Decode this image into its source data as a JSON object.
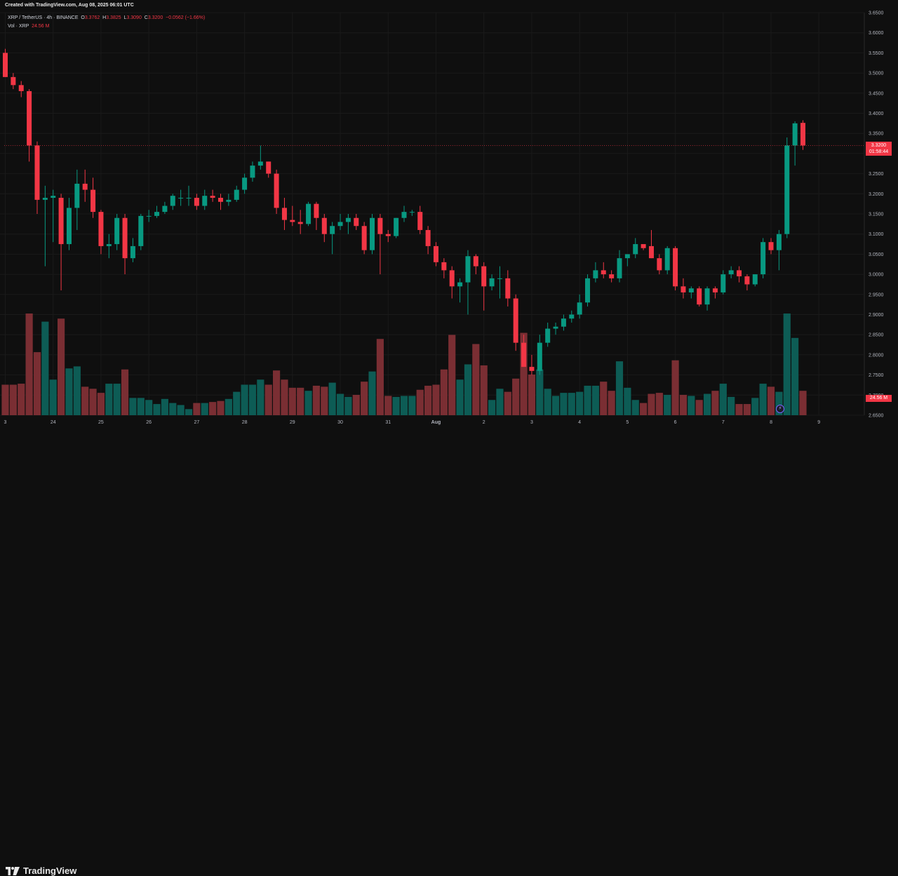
{
  "header": {
    "created": "Created with TradingView.com, Aug 08, 2025 06:01 UTC",
    "symbol": "XRP / TetherUS · 4h · BINANCE",
    "o_label": "O",
    "o_value": "3.3762",
    "h_label": "H",
    "h_value": "3.3825",
    "l_label": "L",
    "l_value": "3.3090",
    "c_label": "C",
    "c_value": "3.3200",
    "change": "−0.0562 (−1.66%)",
    "vol_label": "Vol · XRP",
    "vol_value": "24.56 M"
  },
  "price_tag": {
    "price": "3.3200",
    "countdown": "01:58:44"
  },
  "volume_tag": "24.56 M",
  "logo_text": "TradingView",
  "colors": {
    "up": "#089981",
    "down": "#f23645",
    "up_vol": "#0d5c55",
    "down_vol": "#7a2e33",
    "background": "#0f0f0f",
    "grid": "#1a1a1a"
  },
  "chart_data": {
    "type": "candlestick",
    "symbol": "XRP / TetherUS",
    "interval": "4h",
    "exchange": "BINANCE",
    "y_axis_ticks": [
      "3.6500",
      "3.6000",
      "3.5500",
      "3.5000",
      "3.4500",
      "3.4000",
      "3.3500",
      "3.3000",
      "3.2500",
      "3.2000",
      "3.1500",
      "3.1000",
      "3.0500",
      "3.0000",
      "2.9500",
      "2.9000",
      "2.8500",
      "2.8000",
      "2.7500",
      "2.7000",
      "2.6500"
    ],
    "y_axis_range": [
      2.65,
      3.65
    ],
    "x_axis_ticks": [
      {
        "label": "3",
        "index": 0
      },
      {
        "label": "24",
        "index": 6
      },
      {
        "label": "25",
        "index": 12
      },
      {
        "label": "26",
        "index": 18
      },
      {
        "label": "27",
        "index": 24
      },
      {
        "label": "28",
        "index": 30
      },
      {
        "label": "29",
        "index": 36
      },
      {
        "label": "30",
        "index": 42
      },
      {
        "label": "31",
        "index": 48
      },
      {
        "label": "Aug",
        "index": 54
      },
      {
        "label": "2",
        "index": 60
      },
      {
        "label": "3",
        "index": 66
      },
      {
        "label": "4",
        "index": 72
      },
      {
        "label": "5",
        "index": 78
      },
      {
        "label": "6",
        "index": 84
      },
      {
        "label": "7",
        "index": 90
      },
      {
        "label": "8",
        "index": 96
      },
      {
        "label": "9",
        "index": 102
      }
    ],
    "last_price": 3.32,
    "candles": [
      {
        "o": 3.55,
        "h": 3.56,
        "l": 3.49,
        "c": 3.49,
        "v": 0.3
      },
      {
        "o": 3.49,
        "h": 3.5,
        "l": 3.46,
        "c": 3.47,
        "v": 0.3
      },
      {
        "o": 3.47,
        "h": 3.48,
        "l": 3.44,
        "c": 3.455,
        "v": 0.31
      },
      {
        "o": 3.455,
        "h": 3.46,
        "l": 3.28,
        "c": 3.32,
        "v": 1.0
      },
      {
        "o": 3.32,
        "h": 3.33,
        "l": 3.15,
        "c": 3.185,
        "v": 0.62
      },
      {
        "o": 3.185,
        "h": 3.22,
        "l": 3.02,
        "c": 3.19,
        "v": 0.92
      },
      {
        "o": 3.19,
        "h": 3.21,
        "l": 3.08,
        "c": 3.195,
        "v": 0.35
      },
      {
        "o": 3.19,
        "h": 3.2,
        "l": 2.96,
        "c": 3.075,
        "v": 0.95
      },
      {
        "o": 3.075,
        "h": 3.19,
        "l": 3.06,
        "c": 3.165,
        "v": 0.46
      },
      {
        "o": 3.165,
        "h": 3.26,
        "l": 3.11,
        "c": 3.225,
        "v": 0.48
      },
      {
        "o": 3.225,
        "h": 3.26,
        "l": 3.18,
        "c": 3.21,
        "v": 0.28
      },
      {
        "o": 3.21,
        "h": 3.24,
        "l": 3.14,
        "c": 3.155,
        "v": 0.26
      },
      {
        "o": 3.155,
        "h": 3.16,
        "l": 3.05,
        "c": 3.07,
        "v": 0.22
      },
      {
        "o": 3.07,
        "h": 3.1,
        "l": 3.04,
        "c": 3.075,
        "v": 0.31
      },
      {
        "o": 3.075,
        "h": 3.15,
        "l": 3.06,
        "c": 3.14,
        "v": 0.31
      },
      {
        "o": 3.14,
        "h": 3.15,
        "l": 3.0,
        "c": 3.04,
        "v": 0.45
      },
      {
        "o": 3.04,
        "h": 3.09,
        "l": 3.03,
        "c": 3.07,
        "v": 0.17
      },
      {
        "o": 3.07,
        "h": 3.15,
        "l": 3.06,
        "c": 3.145,
        "v": 0.17
      },
      {
        "o": 3.145,
        "h": 3.16,
        "l": 3.13,
        "c": 3.145,
        "v": 0.15
      },
      {
        "o": 3.145,
        "h": 3.17,
        "l": 3.14,
        "c": 3.155,
        "v": 0.11
      },
      {
        "o": 3.155,
        "h": 3.18,
        "l": 3.15,
        "c": 3.17,
        "v": 0.16
      },
      {
        "o": 3.17,
        "h": 3.2,
        "l": 3.16,
        "c": 3.195,
        "v": 0.12
      },
      {
        "o": 3.19,
        "h": 3.21,
        "l": 3.17,
        "c": 3.19,
        "v": 0.1
      },
      {
        "o": 3.19,
        "h": 3.22,
        "l": 3.17,
        "c": 3.19,
        "v": 0.06
      },
      {
        "o": 3.19,
        "h": 3.2,
        "l": 3.16,
        "c": 3.17,
        "v": 0.12
      },
      {
        "o": 3.17,
        "h": 3.21,
        "l": 3.16,
        "c": 3.195,
        "v": 0.12
      },
      {
        "o": 3.195,
        "h": 3.21,
        "l": 3.18,
        "c": 3.19,
        "v": 0.13
      },
      {
        "o": 3.19,
        "h": 3.2,
        "l": 3.16,
        "c": 3.18,
        "v": 0.14
      },
      {
        "o": 3.18,
        "h": 3.2,
        "l": 3.17,
        "c": 3.185,
        "v": 0.16
      },
      {
        "o": 3.185,
        "h": 3.22,
        "l": 3.18,
        "c": 3.21,
        "v": 0.23
      },
      {
        "o": 3.21,
        "h": 3.25,
        "l": 3.2,
        "c": 3.24,
        "v": 0.3
      },
      {
        "o": 3.24,
        "h": 3.28,
        "l": 3.23,
        "c": 3.27,
        "v": 0.3
      },
      {
        "o": 3.27,
        "h": 3.32,
        "l": 3.26,
        "c": 3.28,
        "v": 0.35
      },
      {
        "o": 3.28,
        "h": 3.28,
        "l": 3.24,
        "c": 3.25,
        "v": 0.3
      },
      {
        "o": 3.25,
        "h": 3.26,
        "l": 3.15,
        "c": 3.165,
        "v": 0.44
      },
      {
        "o": 3.165,
        "h": 3.19,
        "l": 3.11,
        "c": 3.135,
        "v": 0.35
      },
      {
        "o": 3.135,
        "h": 3.17,
        "l": 3.12,
        "c": 3.13,
        "v": 0.27
      },
      {
        "o": 3.13,
        "h": 3.16,
        "l": 3.1,
        "c": 3.125,
        "v": 0.27
      },
      {
        "o": 3.125,
        "h": 3.18,
        "l": 3.12,
        "c": 3.175,
        "v": 0.24
      },
      {
        "o": 3.175,
        "h": 3.18,
        "l": 3.11,
        "c": 3.14,
        "v": 0.29
      },
      {
        "o": 3.14,
        "h": 3.15,
        "l": 3.08,
        "c": 3.1,
        "v": 0.28
      },
      {
        "o": 3.1,
        "h": 3.13,
        "l": 3.05,
        "c": 3.12,
        "v": 0.32
      },
      {
        "o": 3.12,
        "h": 3.15,
        "l": 3.11,
        "c": 3.13,
        "v": 0.21
      },
      {
        "o": 3.13,
        "h": 3.15,
        "l": 3.1,
        "c": 3.14,
        "v": 0.18
      },
      {
        "o": 3.14,
        "h": 3.15,
        "l": 3.11,
        "c": 3.12,
        "v": 0.2
      },
      {
        "o": 3.12,
        "h": 3.13,
        "l": 3.05,
        "c": 3.06,
        "v": 0.33
      },
      {
        "o": 3.06,
        "h": 3.15,
        "l": 3.05,
        "c": 3.14,
        "v": 0.43
      },
      {
        "o": 3.14,
        "h": 3.15,
        "l": 3.0,
        "c": 3.1,
        "v": 0.75
      },
      {
        "o": 3.1,
        "h": 3.11,
        "l": 3.08,
        "c": 3.095,
        "v": 0.19
      },
      {
        "o": 3.095,
        "h": 3.14,
        "l": 3.09,
        "c": 3.14,
        "v": 0.18
      },
      {
        "o": 3.14,
        "h": 3.17,
        "l": 3.13,
        "c": 3.155,
        "v": 0.19
      },
      {
        "o": 3.155,
        "h": 3.16,
        "l": 3.145,
        "c": 3.155,
        "v": 0.19
      },
      {
        "o": 3.155,
        "h": 3.17,
        "l": 3.1,
        "c": 3.11,
        "v": 0.25
      },
      {
        "o": 3.11,
        "h": 3.12,
        "l": 3.05,
        "c": 3.07,
        "v": 0.29
      },
      {
        "o": 3.07,
        "h": 3.08,
        "l": 3.02,
        "c": 3.03,
        "v": 0.3
      },
      {
        "o": 3.03,
        "h": 3.04,
        "l": 2.99,
        "c": 3.01,
        "v": 0.45
      },
      {
        "o": 3.01,
        "h": 3.02,
        "l": 2.94,
        "c": 2.97,
        "v": 0.79
      },
      {
        "o": 2.97,
        "h": 2.99,
        "l": 2.93,
        "c": 2.98,
        "v": 0.35
      },
      {
        "o": 2.98,
        "h": 3.06,
        "l": 2.9,
        "c": 3.045,
        "v": 0.5
      },
      {
        "o": 3.045,
        "h": 3.05,
        "l": 3.0,
        "c": 3.02,
        "v": 0.7
      },
      {
        "o": 3.02,
        "h": 3.03,
        "l": 2.91,
        "c": 2.97,
        "v": 0.49
      },
      {
        "o": 2.97,
        "h": 3.0,
        "l": 2.96,
        "c": 2.99,
        "v": 0.15
      },
      {
        "o": 2.99,
        "h": 3.02,
        "l": 2.94,
        "c": 2.99,
        "v": 0.26
      },
      {
        "o": 2.99,
        "h": 3.01,
        "l": 2.92,
        "c": 2.94,
        "v": 0.23
      },
      {
        "o": 2.94,
        "h": 2.95,
        "l": 2.81,
        "c": 2.83,
        "v": 0.36
      },
      {
        "o": 2.83,
        "h": 2.85,
        "l": 2.77,
        "c": 2.77,
        "v": 0.81
      },
      {
        "o": 2.77,
        "h": 2.8,
        "l": 2.75,
        "c": 2.76,
        "v": 0.4
      },
      {
        "o": 2.76,
        "h": 2.85,
        "l": 2.75,
        "c": 2.83,
        "v": 0.45
      },
      {
        "o": 2.83,
        "h": 2.88,
        "l": 2.82,
        "c": 2.865,
        "v": 0.26
      },
      {
        "o": 2.865,
        "h": 2.88,
        "l": 2.85,
        "c": 2.87,
        "v": 0.19
      },
      {
        "o": 2.87,
        "h": 2.9,
        "l": 2.86,
        "c": 2.89,
        "v": 0.22
      },
      {
        "o": 2.89,
        "h": 2.91,
        "l": 2.88,
        "c": 2.9,
        "v": 0.22
      },
      {
        "o": 2.9,
        "h": 2.95,
        "l": 2.89,
        "c": 2.93,
        "v": 0.23
      },
      {
        "o": 2.93,
        "h": 3.0,
        "l": 2.92,
        "c": 2.99,
        "v": 0.29
      },
      {
        "o": 2.99,
        "h": 3.03,
        "l": 2.98,
        "c": 3.01,
        "v": 0.29
      },
      {
        "o": 3.01,
        "h": 3.03,
        "l": 2.99,
        "c": 3.0,
        "v": 0.33
      },
      {
        "o": 3.0,
        "h": 3.01,
        "l": 2.98,
        "c": 2.99,
        "v": 0.24
      },
      {
        "o": 2.99,
        "h": 3.06,
        "l": 2.98,
        "c": 3.04,
        "v": 0.53
      },
      {
        "o": 3.04,
        "h": 3.05,
        "l": 3.02,
        "c": 3.05,
        "v": 0.27
      },
      {
        "o": 3.05,
        "h": 3.09,
        "l": 3.04,
        "c": 3.075,
        "v": 0.15
      },
      {
        "o": 3.075,
        "h": 3.07,
        "l": 3.06,
        "c": 3.065,
        "v": 0.12
      },
      {
        "o": 3.07,
        "h": 3.11,
        "l": 3.04,
        "c": 3.04,
        "v": 0.21
      },
      {
        "o": 3.04,
        "h": 3.05,
        "l": 3.0,
        "c": 3.01,
        "v": 0.22
      },
      {
        "o": 3.01,
        "h": 3.07,
        "l": 3.0,
        "c": 3.065,
        "v": 0.2
      },
      {
        "o": 3.065,
        "h": 3.07,
        "l": 2.96,
        "c": 2.97,
        "v": 0.54
      },
      {
        "o": 2.97,
        "h": 2.99,
        "l": 2.94,
        "c": 2.955,
        "v": 0.2
      },
      {
        "o": 2.955,
        "h": 2.97,
        "l": 2.94,
        "c": 2.965,
        "v": 0.19
      },
      {
        "o": 2.965,
        "h": 2.97,
        "l": 2.92,
        "c": 2.925,
        "v": 0.15
      },
      {
        "o": 2.925,
        "h": 2.97,
        "l": 2.91,
        "c": 2.965,
        "v": 0.21
      },
      {
        "o": 2.965,
        "h": 2.97,
        "l": 2.94,
        "c": 2.955,
        "v": 0.24
      },
      {
        "o": 2.955,
        "h": 3.01,
        "l": 2.95,
        "c": 3.0,
        "v": 0.31
      },
      {
        "o": 3.0,
        "h": 3.02,
        "l": 2.99,
        "c": 3.01,
        "v": 0.18
      },
      {
        "o": 3.01,
        "h": 3.02,
        "l": 2.98,
        "c": 2.995,
        "v": 0.11
      },
      {
        "o": 2.995,
        "h": 3.0,
        "l": 2.96,
        "c": 2.975,
        "v": 0.11
      },
      {
        "o": 2.975,
        "h": 3.0,
        "l": 2.97,
        "c": 3.0,
        "v": 0.17
      },
      {
        "o": 3.0,
        "h": 3.09,
        "l": 2.99,
        "c": 3.08,
        "v": 0.31
      },
      {
        "o": 3.08,
        "h": 3.09,
        "l": 3.05,
        "c": 3.06,
        "v": 0.28
      },
      {
        "o": 3.06,
        "h": 3.11,
        "l": 3.01,
        "c": 3.1,
        "v": 0.23
      },
      {
        "o": 3.1,
        "h": 3.34,
        "l": 3.09,
        "c": 3.32,
        "v": 1.0
      },
      {
        "o": 3.32,
        "h": 3.38,
        "l": 3.27,
        "c": 3.375,
        "v": 0.76
      },
      {
        "o": 3.3762,
        "h": 3.3825,
        "l": 3.309,
        "c": 3.32,
        "v": 0.24
      }
    ]
  }
}
